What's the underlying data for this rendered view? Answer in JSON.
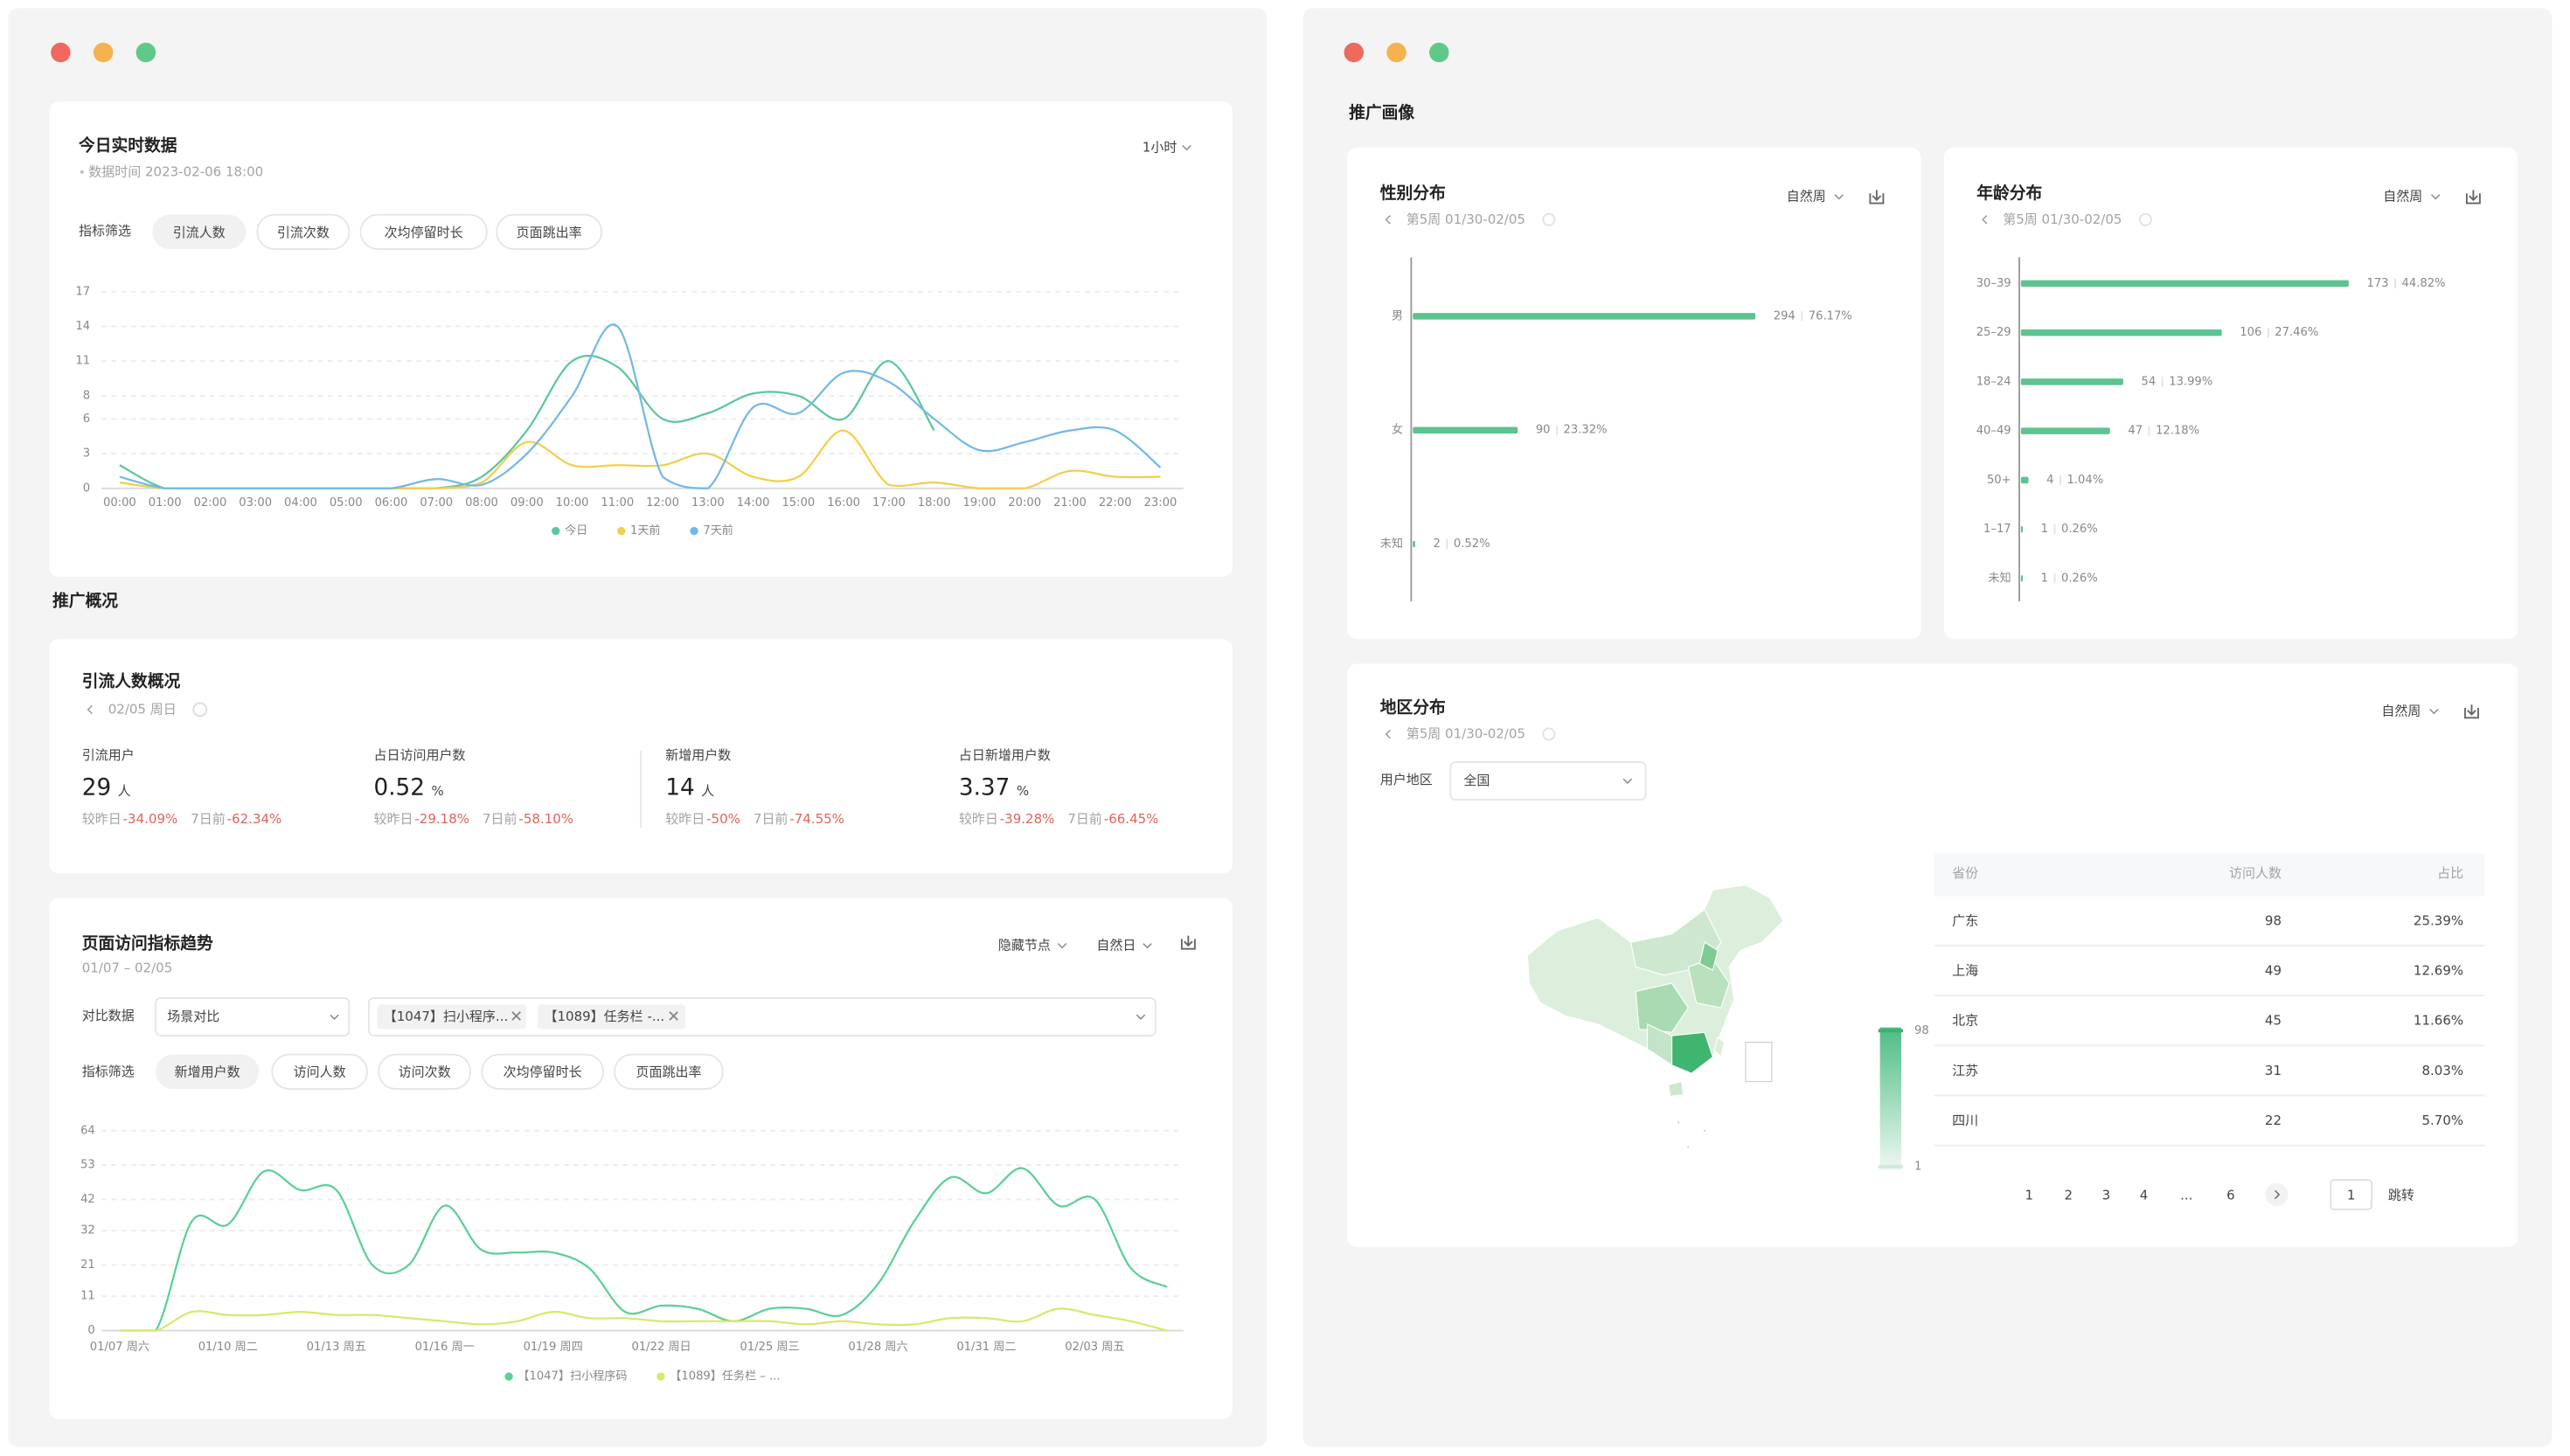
{
  "left": {
    "realtime": {
      "title": "今日实时数据",
      "subtitle": "数据时间 2023-02-06 18:00",
      "interval": "1小时",
      "filter_label": "指标筛选",
      "filters": [
        "引流人数",
        "引流次数",
        "次均停留时长",
        "页面跳出率"
      ]
    },
    "section": "推广概况",
    "overview": {
      "title": "引流人数概况",
      "date": "02/05 周日",
      "metrics": [
        {
          "label": "引流用户",
          "value": "29",
          "unit": "人",
          "vs_day_label": "较昨日",
          "vs_day": "-34.09%",
          "vs_week_label": "7日前",
          "vs_week": "-62.34%"
        },
        {
          "label": "占日访问用户数",
          "value": "0.52",
          "unit": "%",
          "vs_day_label": "较昨日",
          "vs_day": "-29.18%",
          "vs_week_label": "7日前",
          "vs_week": "-58.10%"
        },
        {
          "label": "新增用户数",
          "value": "14",
          "unit": "人",
          "vs_day_label": "较昨日",
          "vs_day": "-50%",
          "vs_week_label": "7日前",
          "vs_week": "-74.55%"
        },
        {
          "label": "占日新增用户数",
          "value": "3.37",
          "unit": "%",
          "vs_day_label": "较昨日",
          "vs_day": "-39.28%",
          "vs_week_label": "7日前",
          "vs_week": "-66.45%"
        }
      ]
    },
    "trend": {
      "title": "页面访问指标趋势",
      "range": "01/07 – 02/05",
      "hide_nodes": "隐藏节点",
      "period": "自然日",
      "compare_label": "对比数据",
      "compare_value": "场景对比",
      "tags": [
        "【1047】扫小程序...",
        "【1089】任务栏 -..."
      ],
      "filter_label": "指标筛选",
      "filters": [
        "新增用户数",
        "访问人数",
        "访问次数",
        "次均停留时长",
        "页面跳出率"
      ]
    }
  },
  "right": {
    "section": "推广画像",
    "gender": {
      "title": "性别分布",
      "period": "自然周",
      "week": "第5周 01/30-02/05"
    },
    "age": {
      "title": "年龄分布",
      "period": "自然周",
      "week": "第5周 01/30-02/05"
    },
    "region": {
      "title": "地区分布",
      "period": "自然周",
      "week": "第5周 01/30-02/05",
      "area_label": "用户地区",
      "area_value": "全国",
      "scale_max": "98",
      "scale_min": "1",
      "table": {
        "header": [
          "省份",
          "访问人数",
          "占比"
        ],
        "rows": [
          [
            "广东",
            "98",
            "25.39%"
          ],
          [
            "上海",
            "49",
            "12.69%"
          ],
          [
            "北京",
            "45",
            "11.66%"
          ],
          [
            "江苏",
            "31",
            "8.03%"
          ],
          [
            "四川",
            "22",
            "5.70%"
          ]
        ]
      },
      "pagination": {
        "pages": [
          "1",
          "2",
          "3",
          "4",
          "...",
          "6"
        ],
        "input": "1",
        "jump": "跳转"
      }
    }
  },
  "chart_data": [
    {
      "type": "line",
      "categories": [
        "00:00",
        "01:00",
        "02:00",
        "03:00",
        "04:00",
        "05:00",
        "06:00",
        "07:00",
        "08:00",
        "09:00",
        "10:00",
        "11:00",
        "12:00",
        "13:00",
        "14:00",
        "15:00",
        "16:00",
        "17:00",
        "18:00",
        "19:00",
        "20:00",
        "21:00",
        "22:00",
        "23:00"
      ],
      "ylim": [
        0,
        17
      ],
      "yticks": [
        0,
        3,
        6,
        8,
        11,
        14,
        17
      ],
      "grid": true,
      "series": [
        {
          "name": "今日",
          "color": "#5cc6a0",
          "values": [
            2,
            0,
            0,
            0,
            0,
            0,
            0,
            0,
            1,
            5,
            11,
            10.5,
            6,
            6.5,
            8.2,
            8,
            6,
            11,
            5,
            null,
            null,
            null,
            null,
            null
          ]
        },
        {
          "name": "1天前",
          "color": "#f2cf4b",
          "values": [
            0.5,
            0,
            0,
            0,
            0,
            0,
            0,
            0,
            0.5,
            4,
            2,
            2,
            2,
            3,
            1,
            1,
            5,
            0.3,
            0.5,
            0,
            0,
            1.5,
            1,
            1
          ]
        },
        {
          "name": "7天前",
          "color": "#73b9e6",
          "values": [
            1,
            0,
            0,
            0,
            0,
            0,
            0,
            0.8,
            0.3,
            3,
            8,
            14,
            1,
            0,
            7,
            6.5,
            10,
            9.2,
            6,
            3.3,
            4,
            5,
            5,
            1.8
          ]
        }
      ]
    },
    {
      "type": "line",
      "categories": [
        "01/07 周六",
        null,
        null,
        "01/10 周二",
        null,
        null,
        "01/13 周五",
        null,
        null,
        "01/16 周一",
        null,
        null,
        "01/19 周四",
        null,
        null,
        "01/22 周日",
        null,
        null,
        "01/25 周三",
        null,
        null,
        "01/28 周六",
        null,
        null,
        "01/31 周二",
        null,
        null,
        "02/03 周五",
        null,
        null
      ],
      "ylim": [
        0,
        64
      ],
      "yticks": [
        0,
        11,
        21,
        32,
        42,
        53,
        64
      ],
      "grid": true,
      "series": [
        {
          "name": "【1047】扫小程序码",
          "color": "#5ccf98",
          "values": [
            0,
            0,
            35,
            34,
            51,
            45,
            45,
            21,
            21,
            40,
            26,
            25,
            25,
            20,
            6,
            8,
            7,
            3,
            7,
            7,
            5,
            15,
            35,
            49,
            44,
            52,
            40,
            42,
            20,
            14
          ]
        },
        {
          "name": "【1089】任务栏 – ...",
          "color": "#dbe76c",
          "values": [
            0,
            0,
            6,
            5,
            5,
            6,
            5,
            5,
            4,
            3,
            2,
            3,
            6,
            4,
            4,
            3,
            3,
            3,
            3,
            2,
            3,
            2,
            2,
            4,
            4,
            3,
            7,
            5,
            3,
            0
          ]
        }
      ]
    },
    {
      "type": "hbar",
      "categories": [
        "男",
        "女",
        "未知"
      ],
      "values": [
        294,
        90,
        2
      ],
      "share_labels": [
        "76.17%",
        "23.32%",
        "0.52%"
      ],
      "color": "#5cc391"
    },
    {
      "type": "hbar",
      "categories": [
        "30–39",
        "25–29",
        "18–24",
        "40–49",
        "50+",
        "1–17",
        "未知"
      ],
      "values": [
        173,
        106,
        54,
        47,
        4,
        1,
        1
      ],
      "share_labels": [
        "44.82%",
        "27.46%",
        "13.99%",
        "12.18%",
        "1.04%",
        "0.26%",
        "0.26%"
      ],
      "color": "#5cc391"
    }
  ]
}
